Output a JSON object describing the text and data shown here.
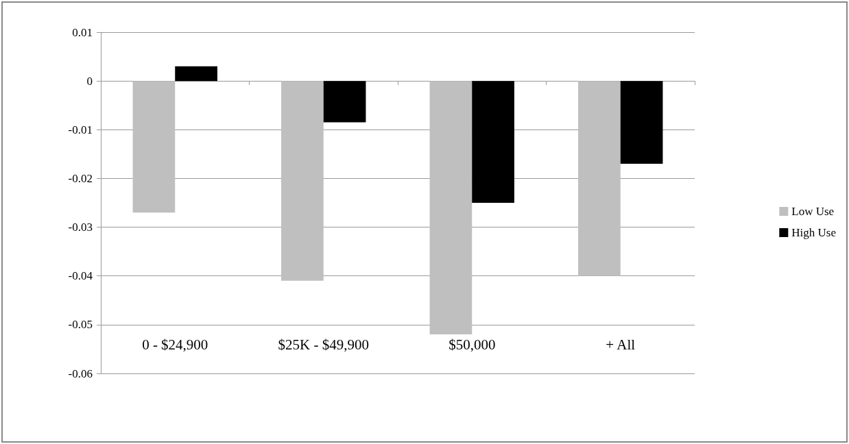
{
  "chart_data": {
    "type": "bar",
    "categories": [
      "0 - $24,900",
      "$25K - $49,900",
      "$50,000",
      "+ All"
    ],
    "series": [
      {
        "name": "Low Use",
        "color": "#bfbfbf",
        "values": [
          -0.027,
          -0.041,
          -0.052,
          -0.04
        ]
      },
      {
        "name": "High Use",
        "color": "#000000",
        "values": [
          0.003,
          -0.0085,
          -0.025,
          -0.017
        ]
      }
    ],
    "ylim": [
      -0.06,
      0.01
    ],
    "yticks": [
      -0.06,
      -0.05,
      -0.04,
      -0.03,
      -0.02,
      -0.01,
      0,
      0.01
    ],
    "grid": "y",
    "legend": "right"
  }
}
